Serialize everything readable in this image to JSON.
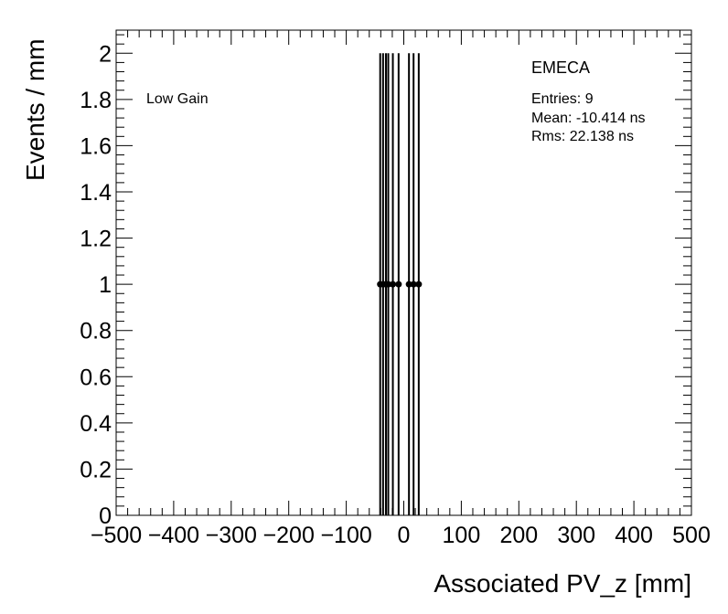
{
  "chart_data": {
    "type": "scatter",
    "xlabel": "Associated PV_z [mm]",
    "ylabel": "Events / mm",
    "xlim": [
      -500,
      500
    ],
    "ylim": [
      0,
      2.1
    ],
    "x_ticks": [
      -500,
      -400,
      -300,
      -200,
      -100,
      0,
      100,
      200,
      300,
      400,
      500
    ],
    "x_tick_labels": [
      "−500",
      "−400",
      "−300",
      "−200",
      "−100",
      "0",
      "100",
      "200",
      "300",
      "400",
      "500"
    ],
    "y_ticks": [
      0,
      0.2,
      0.4,
      0.6,
      0.8,
      1,
      1.2,
      1.4,
      1.6,
      1.8,
      2
    ],
    "y_tick_labels": [
      "0",
      "0.2",
      "0.4",
      "0.6",
      "0.8",
      "1",
      "1.2",
      "1.4",
      "1.6",
      "1.8",
      "2"
    ],
    "points": [
      {
        "x": -41,
        "y": 1,
        "err": 1
      },
      {
        "x": -36,
        "y": 1,
        "err": 1
      },
      {
        "x": -31,
        "y": 1,
        "err": 1
      },
      {
        "x": -27,
        "y": 1,
        "err": 1
      },
      {
        "x": -19,
        "y": 1,
        "err": 1
      },
      {
        "x": -9,
        "y": 1,
        "err": 1
      },
      {
        "x": 9,
        "y": 1,
        "err": 1
      },
      {
        "x": 17,
        "y": 1,
        "err": 1
      },
      {
        "x": 26,
        "y": 1,
        "err": 1
      }
    ],
    "grid": false,
    "legend": "none"
  },
  "annotations": {
    "gain_label": "Low Gain",
    "region": "EMECA",
    "entries": "Entries: 9",
    "mean": "Mean: -10.414 ns",
    "rms": "Rms: 22.138 ns"
  }
}
